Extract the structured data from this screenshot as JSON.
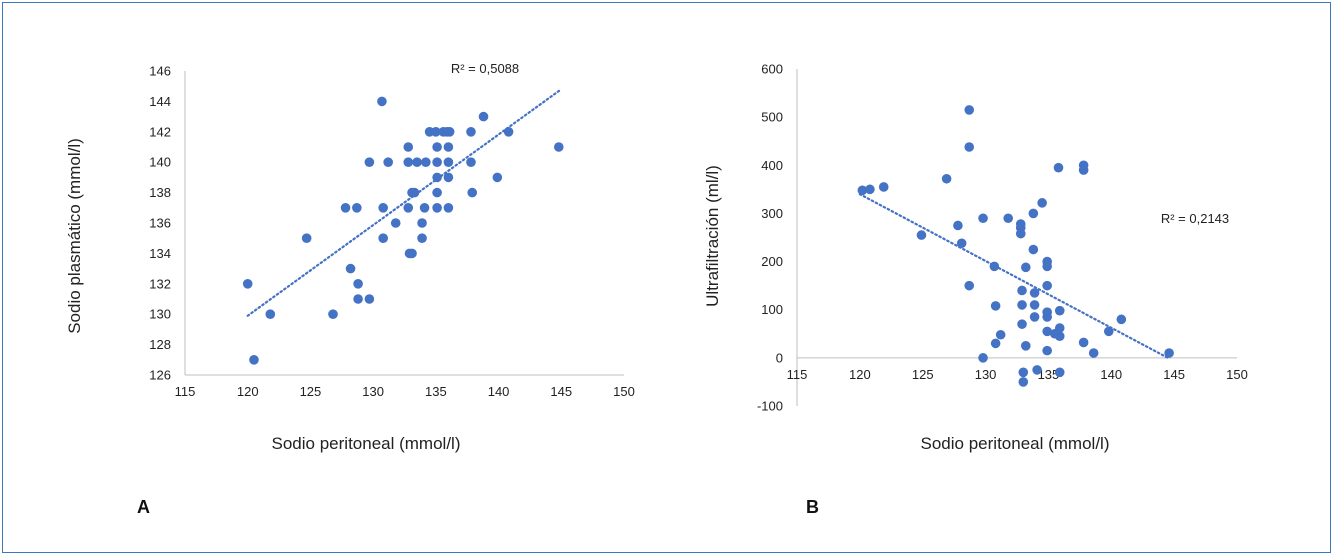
{
  "colors": {
    "frame": "#3c78c0",
    "marker": "#4472c4",
    "trend": "#4472c4",
    "axis": "#bfbfbf"
  },
  "chart_data": [
    {
      "type": "scatter",
      "panel_label": "A",
      "xlabel": "Sodio peritoneal (mmol/l)",
      "ylabel": "Sodio plasmático (mmol/l)",
      "xlim": [
        115,
        150
      ],
      "ylim": [
        126,
        146
      ],
      "x_ticks": [
        "115",
        "120",
        "125",
        "130",
        "135",
        "140",
        "145",
        "150"
      ],
      "y_ticks": [
        "126",
        "128",
        "130",
        "132",
        "134",
        "136",
        "138",
        "140",
        "142",
        "144",
        "146"
      ],
      "grid": false,
      "trendline": {
        "style": "dotted",
        "x": [
          120,
          145
        ],
        "y": [
          129.9,
          144.8
        ]
      },
      "annotation": "R² = 0,5088",
      "points": [
        [
          120,
          132
        ],
        [
          120.5,
          127
        ],
        [
          121.8,
          130
        ],
        [
          124.7,
          135
        ],
        [
          126.8,
          130
        ],
        [
          127.8,
          137
        ],
        [
          128.2,
          133
        ],
        [
          128.7,
          137
        ],
        [
          128.8,
          132
        ],
        [
          128.8,
          131
        ],
        [
          129.7,
          131
        ],
        [
          129.7,
          140
        ],
        [
          130.7,
          144
        ],
        [
          130.8,
          137
        ],
        [
          130.8,
          135
        ],
        [
          131.2,
          140
        ],
        [
          131.8,
          136
        ],
        [
          132.8,
          141
        ],
        [
          132.8,
          140
        ],
        [
          132.8,
          137
        ],
        [
          132.9,
          134
        ],
        [
          133.1,
          134
        ],
        [
          133.1,
          138
        ],
        [
          133.3,
          138
        ],
        [
          133.5,
          140
        ],
        [
          133.9,
          135
        ],
        [
          133.9,
          136
        ],
        [
          134.1,
          137
        ],
        [
          134.2,
          140
        ],
        [
          134.5,
          142
        ],
        [
          135,
          142
        ],
        [
          135.1,
          141
        ],
        [
          135.1,
          140
        ],
        [
          135.1,
          139
        ],
        [
          135.1,
          138
        ],
        [
          135.1,
          137
        ],
        [
          135.6,
          142
        ],
        [
          135.9,
          142
        ],
        [
          136,
          141
        ],
        [
          136,
          140
        ],
        [
          136,
          139
        ],
        [
          136,
          137
        ],
        [
          136.1,
          142
        ],
        [
          137.8,
          142
        ],
        [
          137.8,
          140
        ],
        [
          137.9,
          138
        ],
        [
          138.8,
          143
        ],
        [
          139.9,
          139
        ],
        [
          140.8,
          142
        ],
        [
          144.8,
          141
        ]
      ]
    },
    {
      "type": "scatter",
      "panel_label": "B",
      "xlabel": "Sodio peritoneal (mmol/l)",
      "ylabel": "Ultrafiltración (ml/l)",
      "xlim": [
        115,
        150
      ],
      "ylim": [
        -100,
        600
      ],
      "x_ticks": [
        "115",
        "120",
        "125",
        "130",
        "135",
        "140",
        "145",
        "150"
      ],
      "y_ticks": [
        "-100",
        "0",
        "100",
        "200",
        "300",
        "400",
        "500",
        "600"
      ],
      "grid": false,
      "trendline": {
        "style": "dotted",
        "x": [
          120,
          144.5
        ],
        "y": [
          340,
          0
        ]
      },
      "annotation": "R² = 0,2143",
      "points": [
        [
          120.2,
          348
        ],
        [
          120.8,
          350
        ],
        [
          121.9,
          355
        ],
        [
          124.9,
          255
        ],
        [
          126.9,
          372
        ],
        [
          127.8,
          275
        ],
        [
          128.1,
          238
        ],
        [
          128.7,
          515
        ],
        [
          128.7,
          438
        ],
        [
          128.7,
          150
        ],
        [
          129.8,
          290
        ],
        [
          129.8,
          0
        ],
        [
          130.7,
          190
        ],
        [
          130.8,
          108
        ],
        [
          130.8,
          30
        ],
        [
          131.2,
          48
        ],
        [
          131.8,
          290
        ],
        [
          132.8,
          278
        ],
        [
          132.8,
          270
        ],
        [
          132.8,
          258
        ],
        [
          132.9,
          140
        ],
        [
          132.9,
          110
        ],
        [
          132.9,
          70
        ],
        [
          133,
          -30
        ],
        [
          133,
          -50
        ],
        [
          133.2,
          188
        ],
        [
          133.2,
          25
        ],
        [
          133.8,
          225
        ],
        [
          133.8,
          300
        ],
        [
          133.9,
          135
        ],
        [
          133.9,
          110
        ],
        [
          133.9,
          85
        ],
        [
          134.1,
          -25
        ],
        [
          134.5,
          322
        ],
        [
          134.9,
          200
        ],
        [
          134.9,
          190
        ],
        [
          134.9,
          150
        ],
        [
          134.9,
          95
        ],
        [
          134.9,
          85
        ],
        [
          134.9,
          55
        ],
        [
          134.9,
          15
        ],
        [
          135.5,
          50
        ],
        [
          135.8,
          395
        ],
        [
          135.9,
          98
        ],
        [
          135.9,
          62
        ],
        [
          135.9,
          45
        ],
        [
          135.9,
          -30
        ],
        [
          137.8,
          400
        ],
        [
          137.8,
          390
        ],
        [
          137.8,
          32
        ],
        [
          138.6,
          10
        ],
        [
          139.8,
          55
        ],
        [
          140.8,
          80
        ],
        [
          144.6,
          10
        ]
      ]
    }
  ]
}
